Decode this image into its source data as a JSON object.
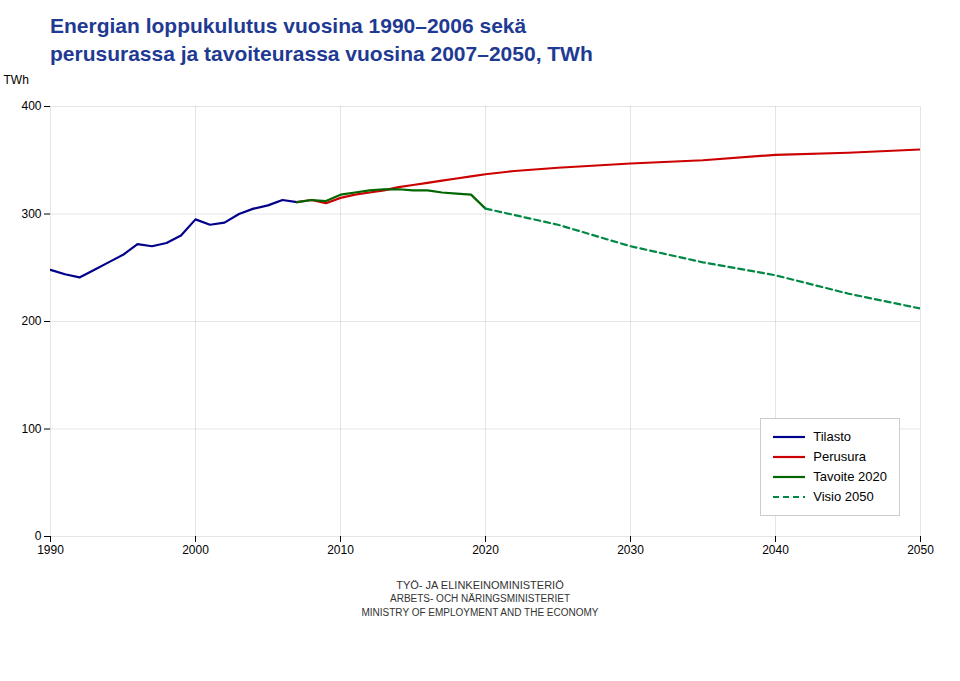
{
  "chart_data": {
    "type": "line",
    "title": "Energian loppukulutus vuosina 1990–2006 sekä",
    "subtitle": "perusurassa ja tavoiteurassa vuosina 2007–2050, TWh",
    "y_label": "TWh",
    "xlim": [
      1990,
      2050
    ],
    "ylim": [
      0,
      400
    ],
    "xticks": [
      1990,
      2000,
      2010,
      2020,
      2030,
      2040,
      2050
    ],
    "yticks": [
      0,
      100,
      200,
      300,
      400
    ],
    "grid": true,
    "legend": "lower right",
    "series": [
      {
        "name": "Tilasto",
        "color": "#00008B",
        "line_style": "solid",
        "x": [
          1990,
          1991,
          1992,
          1993,
          1994,
          1995,
          1996,
          1997,
          1998,
          1999,
          2000,
          2001,
          2002,
          2003,
          2004,
          2005,
          2006,
          2007
        ],
        "values": [
          248,
          244,
          241,
          248,
          255,
          262,
          272,
          270,
          273,
          280,
          295,
          290,
          292,
          300,
          305,
          308,
          313,
          311
        ]
      },
      {
        "name": "Perusura",
        "color": "#CC0000",
        "line_style": "solid",
        "x": [
          2007,
          2008,
          2009,
          2010,
          2011,
          2012,
          2013,
          2014,
          2015,
          2016,
          2017,
          2018,
          2019,
          2020,
          2022,
          2025,
          2030,
          2035,
          2040,
          2045,
          2050
        ],
        "values": [
          311,
          313,
          310,
          315,
          318,
          320,
          322,
          325,
          327,
          329,
          331,
          333,
          335,
          337,
          340,
          343,
          347,
          350,
          355,
          357,
          360
        ]
      },
      {
        "name": "Tavoite 2020",
        "color": "#006600",
        "line_style": "solid",
        "x": [
          2007,
          2008,
          2009,
          2010,
          2011,
          2012,
          2013,
          2014,
          2015,
          2016,
          2017,
          2018,
          2019,
          2020
        ],
        "values": [
          311,
          313,
          312,
          318,
          320,
          322,
          323,
          323,
          322,
          322,
          320,
          319,
          318,
          305
        ]
      },
      {
        "name": "Visio 2050",
        "color": "#008844",
        "line_style": "dashed",
        "x": [
          2020,
          2025,
          2030,
          2035,
          2040,
          2045,
          2050
        ],
        "values": [
          305,
          290,
          270,
          255,
          243,
          226,
          212
        ]
      }
    ],
    "annotations": [
      "TYÖ- JA ELINKEINOMINISTERIÖ",
      "ARBETS- OCH NÄRINGSMINISTERIET",
      "MINISTRY OF EMPLOYMENT AND THE ECONOMY"
    ]
  }
}
